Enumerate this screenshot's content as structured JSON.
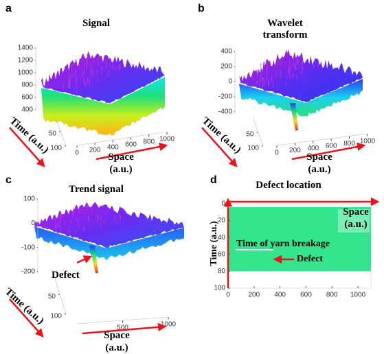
{
  "chart_data": [
    {
      "type": "surface",
      "label": "a",
      "title": "Signal",
      "xlabel": "Space (a.u.)",
      "ylabel": "Time (a.u.)",
      "xlim": [
        0,
        1000
      ],
      "xticks": [
        0,
        200,
        400,
        600,
        800,
        1000
      ],
      "ylim": [
        0,
        100
      ],
      "yticks": [
        50,
        100
      ],
      "zlim": [
        400,
        1400
      ],
      "zticks": [
        400,
        600,
        800,
        1000,
        1200,
        1400
      ]
    },
    {
      "type": "surface",
      "label": "b",
      "title": "Wavelet transform",
      "xlabel": "Space (a.u.)",
      "ylabel": "Time (a.u.)",
      "xlim": [
        0,
        1000
      ],
      "xticks": [
        0,
        200,
        400,
        600,
        800,
        1000
      ],
      "ylim": [
        0,
        100
      ],
      "yticks": [
        50,
        100
      ],
      "zlim": [
        -400,
        400
      ],
      "zticks": [
        -400,
        -200,
        0,
        200,
        400
      ]
    },
    {
      "type": "surface",
      "label": "c",
      "title": "Trend signal",
      "xlabel": "Space (a.u.)",
      "ylabel": "Time (a.u.)",
      "xlim": [
        0,
        1000
      ],
      "xticks": [
        500,
        1000
      ],
      "ylim": [
        0,
        100
      ],
      "yticks": [
        50,
        100
      ],
      "zlim": [
        -200,
        100
      ],
      "zticks": [
        -200,
        -100,
        0,
        100
      ],
      "annotation": "Defect"
    },
    {
      "type": "heatmap",
      "label": "d",
      "title": "Defect location",
      "xlabel": "Space (a.u.)",
      "ylabel": "Time (a.u.)",
      "xlim": [
        0,
        1100
      ],
      "xticks": [
        0,
        200,
        400,
        600,
        800,
        1000
      ],
      "ylim": [
        0,
        100
      ],
      "yticks": [
        0,
        20,
        40,
        60,
        80,
        100
      ],
      "y_reversed": true,
      "region": {
        "x": [
          0,
          1100
        ],
        "y": [
          4,
          80
        ],
        "color": "#33e58c"
      },
      "annotations": [
        "Time of yarn breakage",
        "Defect"
      ]
    }
  ]
}
